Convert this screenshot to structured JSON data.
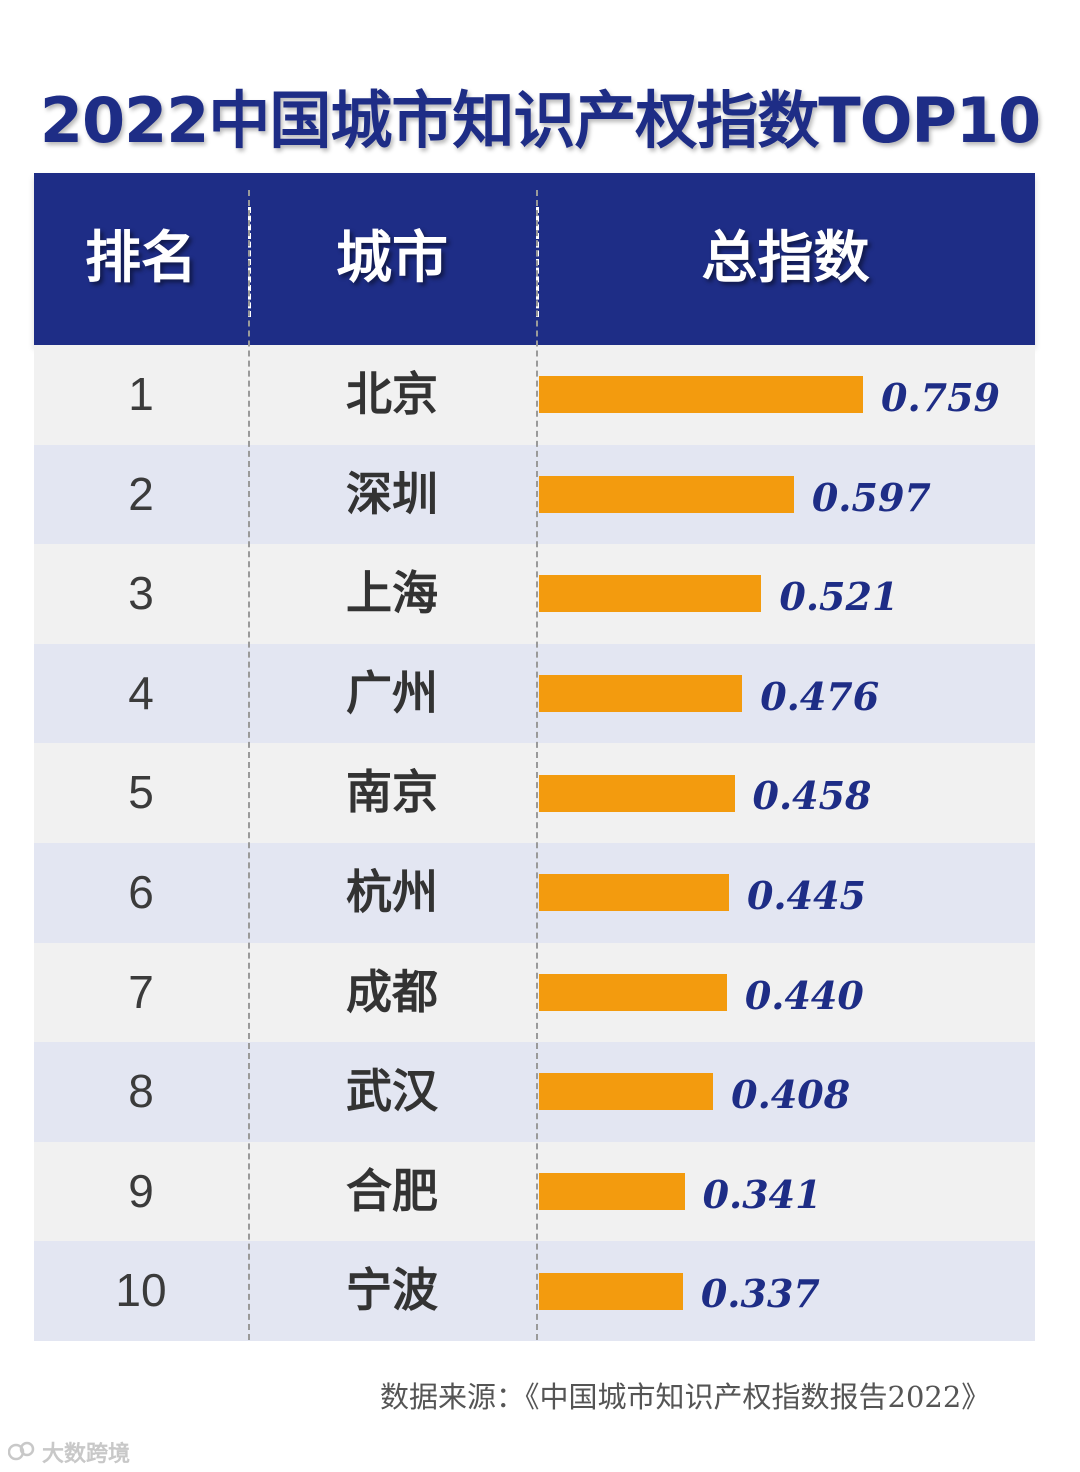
{
  "title": "2022中国城市知识产权指数TOP10",
  "header": {
    "rank": "排名",
    "city": "城市",
    "index": "总指数"
  },
  "chart_data": {
    "type": "bar",
    "orientation": "horizontal",
    "title": "2022中国城市知识产权指数TOP10",
    "columns": [
      "排名",
      "城市",
      "总指数"
    ],
    "ranks": [
      "1",
      "2",
      "3",
      "4",
      "5",
      "6",
      "7",
      "8",
      "9",
      "10"
    ],
    "categories": [
      "北京",
      "深圳",
      "上海",
      "广州",
      "南京",
      "杭州",
      "成都",
      "武汉",
      "合肥",
      "宁波"
    ],
    "values": [
      0.759,
      0.597,
      0.521,
      0.476,
      0.458,
      0.445,
      0.44,
      0.408,
      0.341,
      0.337
    ],
    "value_labels": [
      "0.759",
      "0.597",
      "0.521",
      "0.476",
      "0.458",
      "0.445",
      "0.440",
      "0.408",
      "0.341",
      "0.337"
    ],
    "bar_color": "#f39b0e",
    "label_color": "#1e2d86"
  },
  "source": "数据来源：《中国城市知识产权指数报告2022》",
  "watermark": "大数跨境",
  "colors": {
    "header_bg": "#1e2d86",
    "row_odd": "#f1f1f1",
    "row_even": "#e3e6f2"
  }
}
